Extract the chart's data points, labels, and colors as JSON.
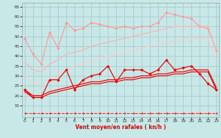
{
  "x": [
    0,
    1,
    2,
    3,
    4,
    5,
    6,
    7,
    8,
    9,
    10,
    11,
    12,
    13,
    14,
    15,
    16,
    17,
    18,
    19,
    20,
    21,
    22,
    23
  ],
  "series": [
    {
      "label": "line1_pink_top_marked",
      "color": "#FF9999",
      "lw": 0.9,
      "marker": "D",
      "ms": 2.0,
      "linestyle": "-",
      "y": [
        49,
        41,
        36,
        52,
        44,
        57,
        53,
        54,
        57,
        56,
        55,
        54,
        55,
        54,
        55,
        55,
        57,
        62,
        61,
        60,
        59,
        55,
        54,
        43
      ]
    },
    {
      "label": "line2_pink_upper_smooth",
      "color": "#FFB0B0",
      "lw": 0.9,
      "marker": null,
      "ms": 0,
      "linestyle": "-",
      "y": [
        37,
        33,
        32,
        36,
        38,
        41,
        42,
        43,
        45,
        46,
        47,
        48,
        49,
        50,
        51,
        52,
        53,
        54,
        55,
        55,
        55,
        55,
        55,
        43
      ]
    },
    {
      "label": "line3_pink_lower_smooth",
      "color": "#FFCCCC",
      "lw": 0.9,
      "marker": null,
      "ms": 0,
      "linestyle": "-",
      "y": [
        30,
        27,
        25,
        29,
        31,
        33,
        35,
        36,
        38,
        39,
        40,
        41,
        42,
        43,
        44,
        45,
        46,
        47,
        48,
        49,
        49,
        49,
        49,
        38
      ]
    },
    {
      "label": "line4_red_jagged_marked",
      "color": "#EE0000",
      "lw": 0.9,
      "marker": "D",
      "ms": 2.0,
      "linestyle": "-",
      "y": [
        23,
        19,
        19,
        28,
        28,
        33,
        23,
        28,
        30,
        31,
        35,
        27,
        33,
        33,
        33,
        31,
        33,
        38,
        33,
        34,
        35,
        31,
        26,
        23
      ]
    },
    {
      "label": "line5_red_smooth1",
      "color": "#EE0000",
      "lw": 0.9,
      "marker": null,
      "ms": 0,
      "linestyle": "-",
      "y": [
        23,
        20,
        20,
        22,
        23,
        24,
        25,
        26,
        27,
        27,
        28,
        28,
        29,
        29,
        30,
        30,
        31,
        31,
        32,
        32,
        33,
        33,
        33,
        24
      ]
    },
    {
      "label": "line6_red_smooth2",
      "color": "#EE0000",
      "lw": 0.9,
      "marker": null,
      "ms": 0,
      "linestyle": "-",
      "y": [
        22,
        19,
        19,
        21,
        22,
        23,
        24,
        25,
        26,
        26,
        27,
        27,
        28,
        28,
        29,
        29,
        30,
        30,
        31,
        31,
        32,
        32,
        32,
        23
      ]
    },
    {
      "label": "line7_dashed_bottom",
      "color": "#EE2222",
      "lw": 0.8,
      "marker": "<",
      "ms": 1.8,
      "linestyle": "--",
      "y": [
        11,
        11,
        11,
        11,
        11,
        11,
        11,
        11,
        11,
        11,
        11,
        11,
        11,
        11,
        11,
        11,
        11,
        11,
        11,
        11,
        11,
        11,
        11,
        11
      ]
    }
  ],
  "xlim": [
    -0.3,
    23.3
  ],
  "ylim": [
    9,
    67
  ],
  "yticks": [
    15,
    20,
    25,
    30,
    35,
    40,
    45,
    50,
    55,
    60,
    65
  ],
  "xticks": [
    0,
    1,
    2,
    3,
    4,
    5,
    6,
    7,
    8,
    9,
    10,
    11,
    12,
    13,
    14,
    15,
    16,
    17,
    18,
    19,
    20,
    21,
    22,
    23
  ],
  "xlabel": "Vent moyen/en rafales ( kn/h )",
  "bg_color": "#C8E8E8",
  "grid_color": "#A0C4C4",
  "title": ""
}
